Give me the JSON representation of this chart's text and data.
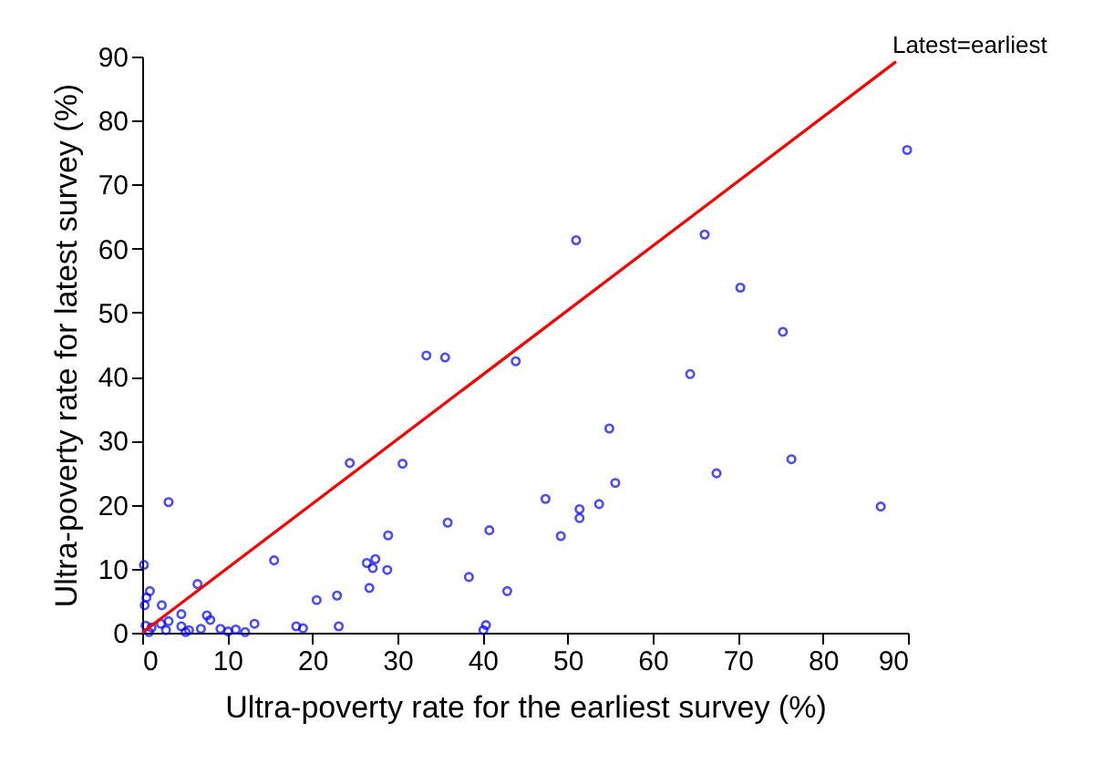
{
  "chart_data": {
    "type": "scatter",
    "xlabel": "Ultra-poverty rate for the earliest survey (%)",
    "ylabel": "Ultra-poverty rate for latest survey (%)",
    "xlim": [
      0,
      90
    ],
    "ylim": [
      0,
      90
    ],
    "xticks": [
      0,
      10,
      20,
      30,
      40,
      50,
      60,
      70,
      80,
      90
    ],
    "yticks": [
      0,
      10,
      20,
      30,
      40,
      50,
      60,
      70,
      80,
      90
    ],
    "grid": false,
    "legend": false,
    "series": [
      {
        "marker": "circle",
        "color": "#0000ff",
        "x": [
          89.9,
          51.0,
          33.4,
          35.6,
          43.9,
          24.4,
          30.6,
          54.9,
          55.6,
          47.4,
          51.4,
          51.4,
          53.7,
          49.2,
          35.9,
          40.8,
          28.9,
          26.4,
          27.4,
          27.1,
          28.8,
          38.4,
          26.7,
          42.9,
          22.9,
          23.1,
          40.4,
          40.1,
          66.1,
          70.3,
          75.3,
          64.4,
          67.5,
          76.3,
          86.8,
          3.1,
          15.5,
          0.2,
          0.9,
          0.5,
          6.5,
          2.3,
          4.6,
          7.6,
          8.0,
          0.3,
          20.5,
          18.1,
          18.9,
          13.2,
          6.9,
          9.2,
          11.0,
          12.1,
          10.1,
          5.5,
          3.1,
          2.2,
          2.8,
          1.1,
          0.4,
          4.6,
          5.1,
          0.8
        ],
        "values": [
          75.4,
          61.3,
          43.3,
          43.0,
          42.4,
          26.5,
          26.4,
          31.9,
          23.4,
          20.9,
          19.3,
          17.9,
          20.1,
          15.1,
          17.2,
          16.0,
          15.2,
          10.9,
          11.5,
          10.1,
          9.8,
          8.7,
          7.0,
          6.5,
          5.8,
          1.0,
          1.2,
          0.4,
          62.2,
          53.9,
          47.0,
          40.4,
          24.9,
          27.1,
          19.7,
          20.4,
          11.3,
          10.6,
          6.5,
          5.5,
          7.6,
          4.3,
          2.9,
          2.7,
          2.0,
          4.3,
          5.1,
          1.0,
          0.7,
          1.4,
          0.6,
          0.6,
          0.5,
          0.1,
          0.2,
          0.4,
          1.8,
          1.4,
          0.4,
          0.8,
          1.1,
          1.0,
          0.1,
          0.1
        ]
      },
      {
        "type": "line",
        "name": "Latest=earliest",
        "color": "#ff0000",
        "x": [
          0,
          88.6
        ],
        "values": [
          0,
          89.2
        ],
        "marker": "none",
        "line_style": "solid"
      }
    ]
  }
}
